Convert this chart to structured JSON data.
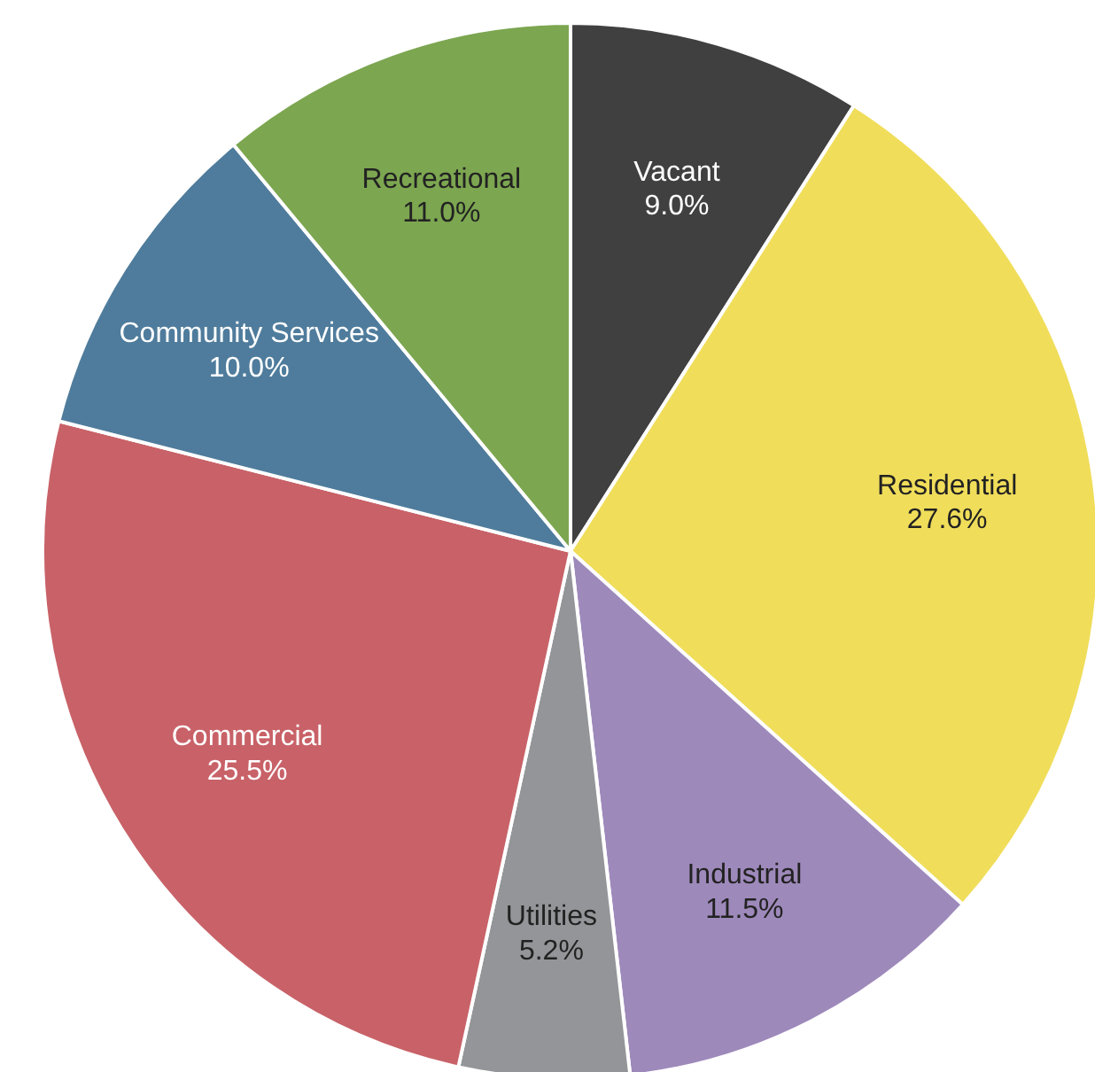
{
  "chart_data": {
    "type": "pie",
    "categories": [
      "Vacant",
      "Residential",
      "Industrial",
      "Utilities",
      "Commercial",
      "Community Services",
      "Recreational"
    ],
    "values": [
      9.0,
      27.6,
      11.5,
      5.2,
      25.5,
      10.0,
      11.0
    ],
    "value_labels": [
      "9.0%",
      "27.6%",
      "11.5%",
      "5.2%",
      "25.5%",
      "10.0%",
      "11.0%"
    ],
    "colors": [
      "#404041",
      "#f0dd5a",
      "#9e89bb",
      "#939598",
      "#c86268",
      "#4f7c9c",
      "#7ca650"
    ]
  }
}
